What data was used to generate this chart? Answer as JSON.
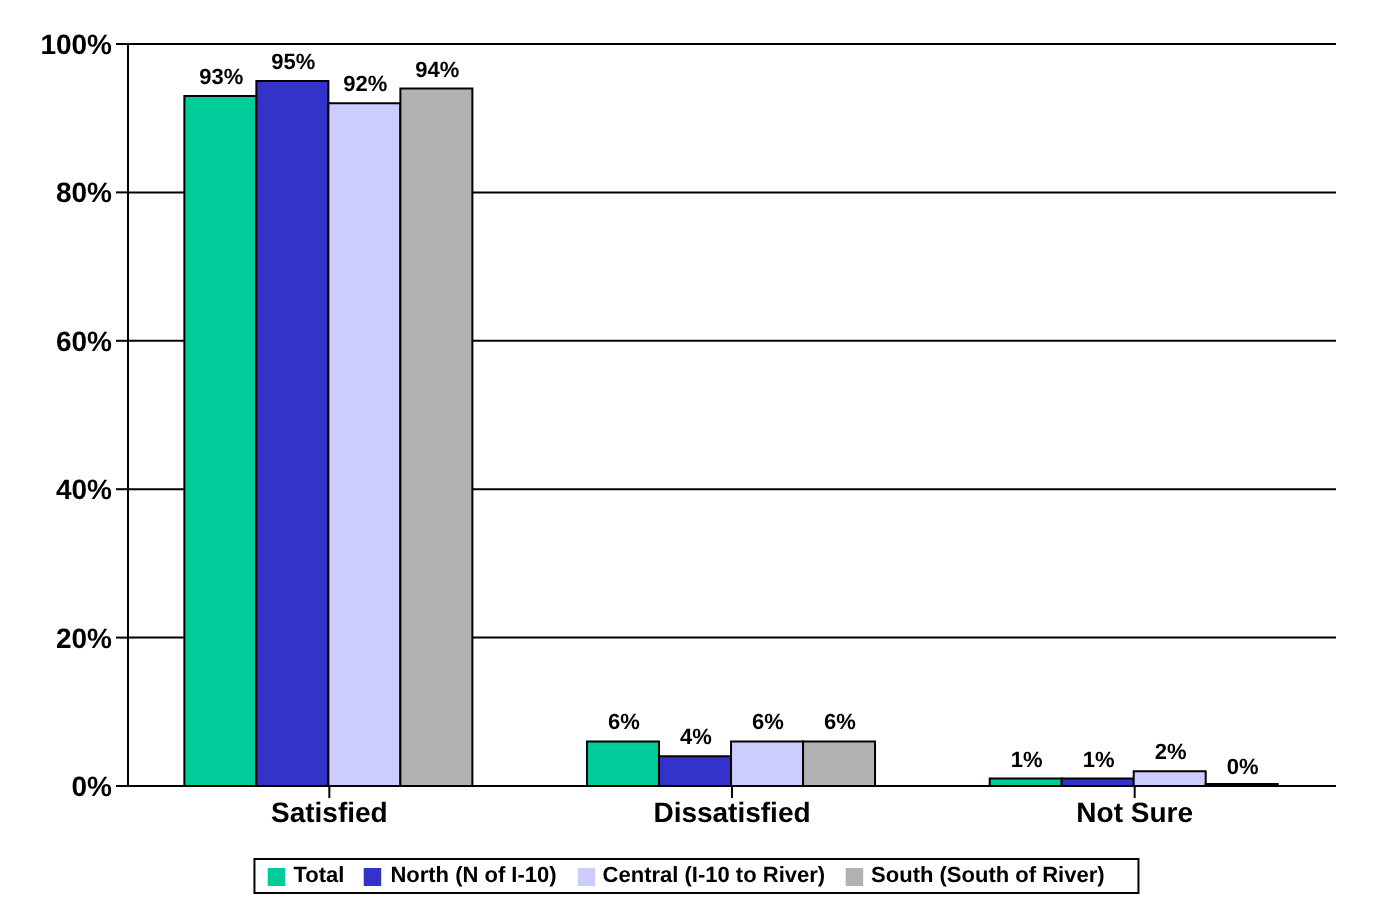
{
  "chart_data": {
    "type": "bar",
    "categories": [
      "Satisfied",
      "Dissatisfied",
      "Not Sure"
    ],
    "series": [
      {
        "name": "Total",
        "color": "#00cc99",
        "values": [
          93,
          6,
          1
        ],
        "value_labels": [
          "93%",
          "6%",
          "1%"
        ]
      },
      {
        "name": "North (N of I-10)",
        "color": "#3333cc",
        "values": [
          95,
          4,
          1
        ],
        "value_labels": [
          "95%",
          "4%",
          "1%"
        ]
      },
      {
        "name": "Central (I-10 to River)",
        "color": "#ccccff",
        "values": [
          92,
          6,
          2
        ],
        "value_labels": [
          "92%",
          "6%",
          "2%"
        ]
      },
      {
        "name": "South (South of River)",
        "color": "#b2b2b2",
        "values": [
          94,
          6,
          0
        ],
        "value_labels": [
          "94%",
          "6%",
          "0%"
        ]
      }
    ],
    "ylim": [
      0,
      100
    ],
    "yticks": [
      {
        "value": 0,
        "label": "0%"
      },
      {
        "value": 20,
        "label": "20%"
      },
      {
        "value": 40,
        "label": "40%"
      },
      {
        "value": 60,
        "label": "60%"
      },
      {
        "value": 80,
        "label": "80%"
      },
      {
        "value": 100,
        "label": "100%"
      }
    ],
    "grid": "y",
    "legend": "bottom"
  }
}
